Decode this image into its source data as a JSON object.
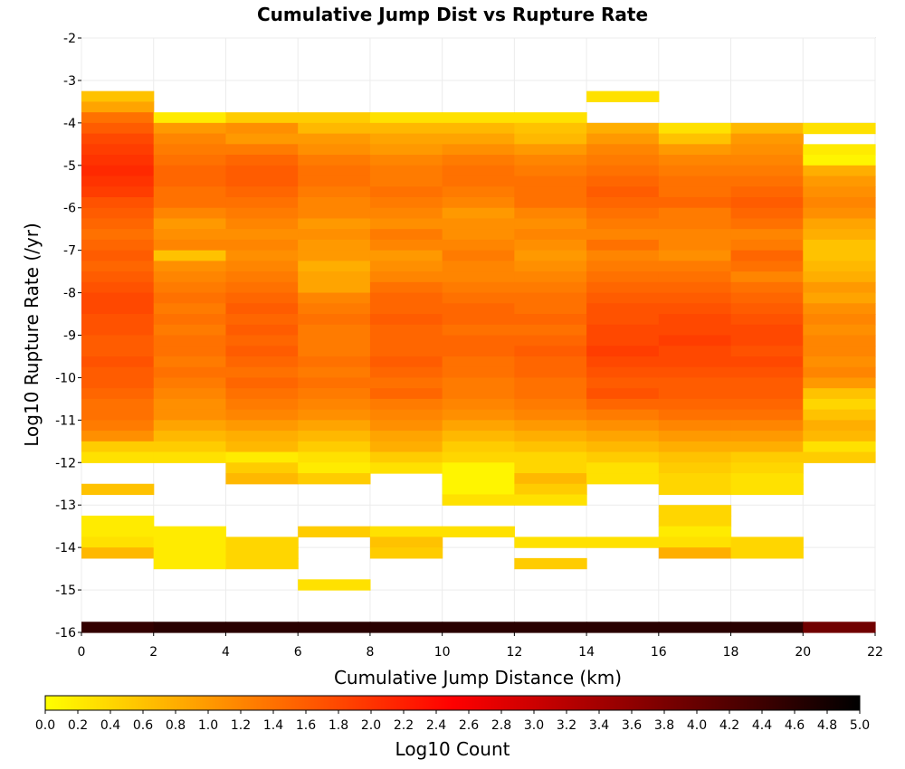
{
  "chart_data": {
    "type": "heatmap",
    "title": "Cumulative Jump Dist vs Rupture Rate",
    "xlabel": "Cumulative Jump Distance (km)",
    "ylabel": "Log10 Rupture Rate (/yr)",
    "xlim": [
      0,
      22
    ],
    "ylim": [
      -16,
      -2
    ],
    "x_bin_width": 2,
    "y_bin_height": 0.25,
    "grid": true,
    "x_ticks": [
      "0",
      "2",
      "4",
      "6",
      "8",
      "10",
      "12",
      "14",
      "16",
      "18",
      "20",
      "22"
    ],
    "y_ticks": [
      "-2",
      "-3",
      "-4",
      "-5",
      "-6",
      "-7",
      "-8",
      "-9",
      "-10",
      "-11",
      "-12",
      "-13",
      "-14",
      "-15",
      "-16"
    ],
    "colorbar": {
      "label": "Log10 Count",
      "range": [
        0,
        5
      ],
      "ticks": [
        "0.0",
        "0.2",
        "0.4",
        "0.6",
        "0.8",
        "1.0",
        "1.2",
        "1.4",
        "1.6",
        "1.8",
        "2.0",
        "2.2",
        "2.4",
        "2.6",
        "2.8",
        "3.0",
        "3.2",
        "3.4",
        "3.6",
        "3.8",
        "4.0",
        "4.2",
        "4.4",
        "4.6",
        "4.8",
        "5.0"
      ],
      "colors": [
        "#ffff00",
        "#ff8000",
        "#ff0000",
        "#800000",
        "#000000"
      ]
    },
    "y_bins_top": [
      -3.25,
      -3.5,
      -3.75,
      -4,
      -4.25,
      -4.5,
      -4.75,
      -5,
      -5.25,
      -5.5,
      -5.75,
      -6,
      -6.25,
      -6.5,
      -6.75,
      -7,
      -7.25,
      -7.5,
      -7.75,
      -8,
      -8.25,
      -8.5,
      -8.75,
      -9,
      -9.25,
      -9.5,
      -9.75,
      -10,
      -10.25,
      -10.5,
      -10.75,
      -11,
      -11.25,
      -11.5,
      -11.75,
      -12,
      -12.25,
      -12.5,
      -12.75,
      -13,
      -13.25,
      -13.5,
      -13.75,
      -14,
      -14.25,
      -14.5,
      -14.75,
      -15,
      -15.25,
      -15.5,
      -15.75
    ],
    "columns": [
      {
        "x_start": 0,
        "values": [
          0.6,
          0.9,
          1.4,
          1.6,
          1.8,
          1.9,
          2.0,
          2.1,
          2.0,
          1.9,
          1.7,
          1.6,
          1.5,
          1.4,
          1.5,
          1.6,
          1.5,
          1.6,
          1.7,
          1.8,
          1.8,
          1.7,
          1.7,
          1.6,
          1.6,
          1.7,
          1.6,
          1.6,
          1.5,
          1.4,
          1.4,
          1.3,
          1.1,
          0.5,
          0.3,
          null,
          null,
          0.6,
          null,
          null,
          0.2,
          0.2,
          0.3,
          0.7,
          null,
          null,
          null,
          null,
          null,
          null,
          4.5
        ]
      },
      {
        "x_start": 2,
        "values": [
          null,
          null,
          0.2,
          1.0,
          1.2,
          1.3,
          1.4,
          1.5,
          1.5,
          1.4,
          1.4,
          1.2,
          1.0,
          1.1,
          1.2,
          0.6,
          1.1,
          1.2,
          1.3,
          1.4,
          1.3,
          1.4,
          1.3,
          1.4,
          1.4,
          1.3,
          1.4,
          1.3,
          1.2,
          1.1,
          1.1,
          0.9,
          0.7,
          0.5,
          0.3,
          null,
          null,
          null,
          null,
          null,
          null,
          0.2,
          0.2,
          0.2,
          0.2,
          null,
          null,
          null,
          null,
          null,
          4.6
        ]
      },
      {
        "x_start": 4,
        "values": [
          null,
          null,
          0.5,
          1.1,
          1.0,
          1.3,
          1.5,
          1.6,
          1.6,
          1.5,
          1.4,
          1.3,
          1.2,
          1.1,
          1.2,
          1.1,
          1.2,
          1.3,
          1.4,
          1.5,
          1.6,
          1.5,
          1.6,
          1.5,
          1.6,
          1.5,
          1.4,
          1.5,
          1.4,
          1.3,
          1.2,
          1.0,
          0.8,
          0.7,
          0.2,
          0.5,
          0.7,
          null,
          null,
          null,
          null,
          null,
          0.4,
          0.4,
          0.4,
          null,
          null,
          null,
          null,
          null,
          4.6
        ]
      },
      {
        "x_start": 6,
        "values": [
          null,
          null,
          0.5,
          0.7,
          1.0,
          1.1,
          1.3,
          1.4,
          1.4,
          1.3,
          1.2,
          1.2,
          1.0,
          1.1,
          1.0,
          1.0,
          0.8,
          0.9,
          0.9,
          1.2,
          1.3,
          1.4,
          1.3,
          1.3,
          1.3,
          1.4,
          1.3,
          1.4,
          1.3,
          1.2,
          1.1,
          0.9,
          0.7,
          0.5,
          0.3,
          0.2,
          0.5,
          null,
          null,
          null,
          null,
          0.5,
          null,
          null,
          null,
          null,
          0.3,
          null,
          null,
          null,
          4.6
        ]
      },
      {
        "x_start": 8,
        "values": [
          null,
          null,
          0.3,
          0.7,
          0.9,
          1.0,
          1.2,
          1.3,
          1.3,
          1.4,
          1.3,
          1.2,
          1.1,
          1.3,
          1.2,
          1.0,
          1.1,
          1.2,
          1.4,
          1.5,
          1.5,
          1.6,
          1.5,
          1.5,
          1.5,
          1.6,
          1.5,
          1.4,
          1.5,
          1.3,
          1.2,
          1.1,
          0.9,
          0.8,
          0.5,
          0.3,
          null,
          null,
          null,
          null,
          null,
          0.3,
          0.6,
          0.5,
          null,
          null,
          null,
          null,
          null,
          null,
          4.6
        ]
      },
      {
        "x_start": 10,
        "values": [
          null,
          null,
          0.3,
          0.7,
          0.9,
          1.1,
          1.3,
          1.4,
          1.4,
          1.3,
          1.2,
          1.0,
          1.1,
          1.1,
          1.2,
          1.3,
          1.2,
          1.2,
          1.3,
          1.4,
          1.5,
          1.5,
          1.4,
          1.5,
          1.5,
          1.4,
          1.4,
          1.3,
          1.3,
          1.2,
          1.1,
          0.9,
          0.7,
          0.5,
          0.4,
          0.1,
          0.1,
          0.1,
          0.3,
          null,
          null,
          0.3,
          null,
          null,
          null,
          null,
          null,
          null,
          null,
          null,
          4.6
        ]
      },
      {
        "x_start": 12,
        "values": [
          null,
          null,
          0.3,
          0.6,
          0.7,
          1.0,
          1.2,
          1.3,
          1.4,
          1.4,
          1.4,
          1.2,
          1.1,
          1.2,
          1.1,
          1.0,
          1.1,
          1.2,
          1.3,
          1.4,
          1.4,
          1.5,
          1.4,
          1.5,
          1.6,
          1.5,
          1.5,
          1.4,
          1.4,
          1.3,
          1.2,
          1.0,
          0.8,
          0.6,
          0.4,
          0.4,
          0.7,
          0.5,
          0.3,
          null,
          null,
          null,
          0.3,
          null,
          0.5,
          null,
          null,
          null,
          null,
          null,
          4.6
        ]
      },
      {
        "x_start": 14,
        "values": [
          0.3,
          null,
          null,
          0.8,
          1.0,
          1.2,
          1.3,
          1.4,
          1.5,
          1.6,
          1.5,
          1.4,
          1.3,
          1.2,
          1.4,
          1.2,
          1.3,
          1.4,
          1.5,
          1.6,
          1.7,
          1.7,
          1.8,
          1.8,
          1.9,
          1.8,
          1.7,
          1.6,
          1.7,
          1.5,
          1.3,
          1.1,
          0.9,
          0.7,
          0.5,
          0.3,
          0.3,
          null,
          null,
          null,
          null,
          null,
          0.3,
          null,
          null,
          null,
          null,
          null,
          null,
          null,
          4.6
        ]
      },
      {
        "x_start": 16,
        "values": [
          null,
          null,
          null,
          0.3,
          0.6,
          1.0,
          1.2,
          1.3,
          1.4,
          1.4,
          1.5,
          1.3,
          1.3,
          1.2,
          1.2,
          1.1,
          1.3,
          1.4,
          1.5,
          1.6,
          1.7,
          1.8,
          1.8,
          1.9,
          1.8,
          1.8,
          1.7,
          1.6,
          1.6,
          1.5,
          1.4,
          1.2,
          1.0,
          0.8,
          0.6,
          0.5,
          0.4,
          0.4,
          null,
          0.4,
          0.4,
          0.2,
          0.3,
          0.8,
          null,
          null,
          null,
          null,
          null,
          null,
          4.6
        ]
      },
      {
        "x_start": 18,
        "values": [
          null,
          null,
          null,
          0.7,
          1.0,
          1.1,
          1.2,
          1.3,
          1.4,
          1.5,
          1.6,
          1.5,
          1.4,
          1.2,
          1.3,
          1.5,
          1.4,
          1.2,
          1.4,
          1.5,
          1.6,
          1.7,
          1.8,
          1.8,
          1.7,
          1.8,
          1.7,
          1.6,
          1.6,
          1.5,
          1.4,
          1.2,
          1.0,
          0.8,
          0.5,
          0.4,
          0.3,
          0.3,
          null,
          null,
          null,
          null,
          0.4,
          0.4,
          null,
          null,
          null,
          null,
          null,
          null,
          4.6
        ]
      },
      {
        "x_start": 20,
        "values": [
          null,
          null,
          null,
          0.3,
          null,
          0.2,
          0.1,
          0.8,
          1.0,
          1.1,
          1.2,
          1.1,
          0.9,
          0.8,
          0.6,
          0.6,
          0.7,
          0.8,
          1.0,
          0.9,
          1.1,
          1.2,
          1.1,
          1.2,
          1.2,
          1.1,
          1.2,
          1.0,
          0.6,
          0.4,
          0.6,
          0.8,
          0.7,
          0.3,
          0.5,
          null,
          null,
          null,
          null,
          null,
          null,
          null,
          null,
          null,
          null,
          null,
          null,
          null,
          null,
          null,
          3.9
        ]
      }
    ]
  }
}
